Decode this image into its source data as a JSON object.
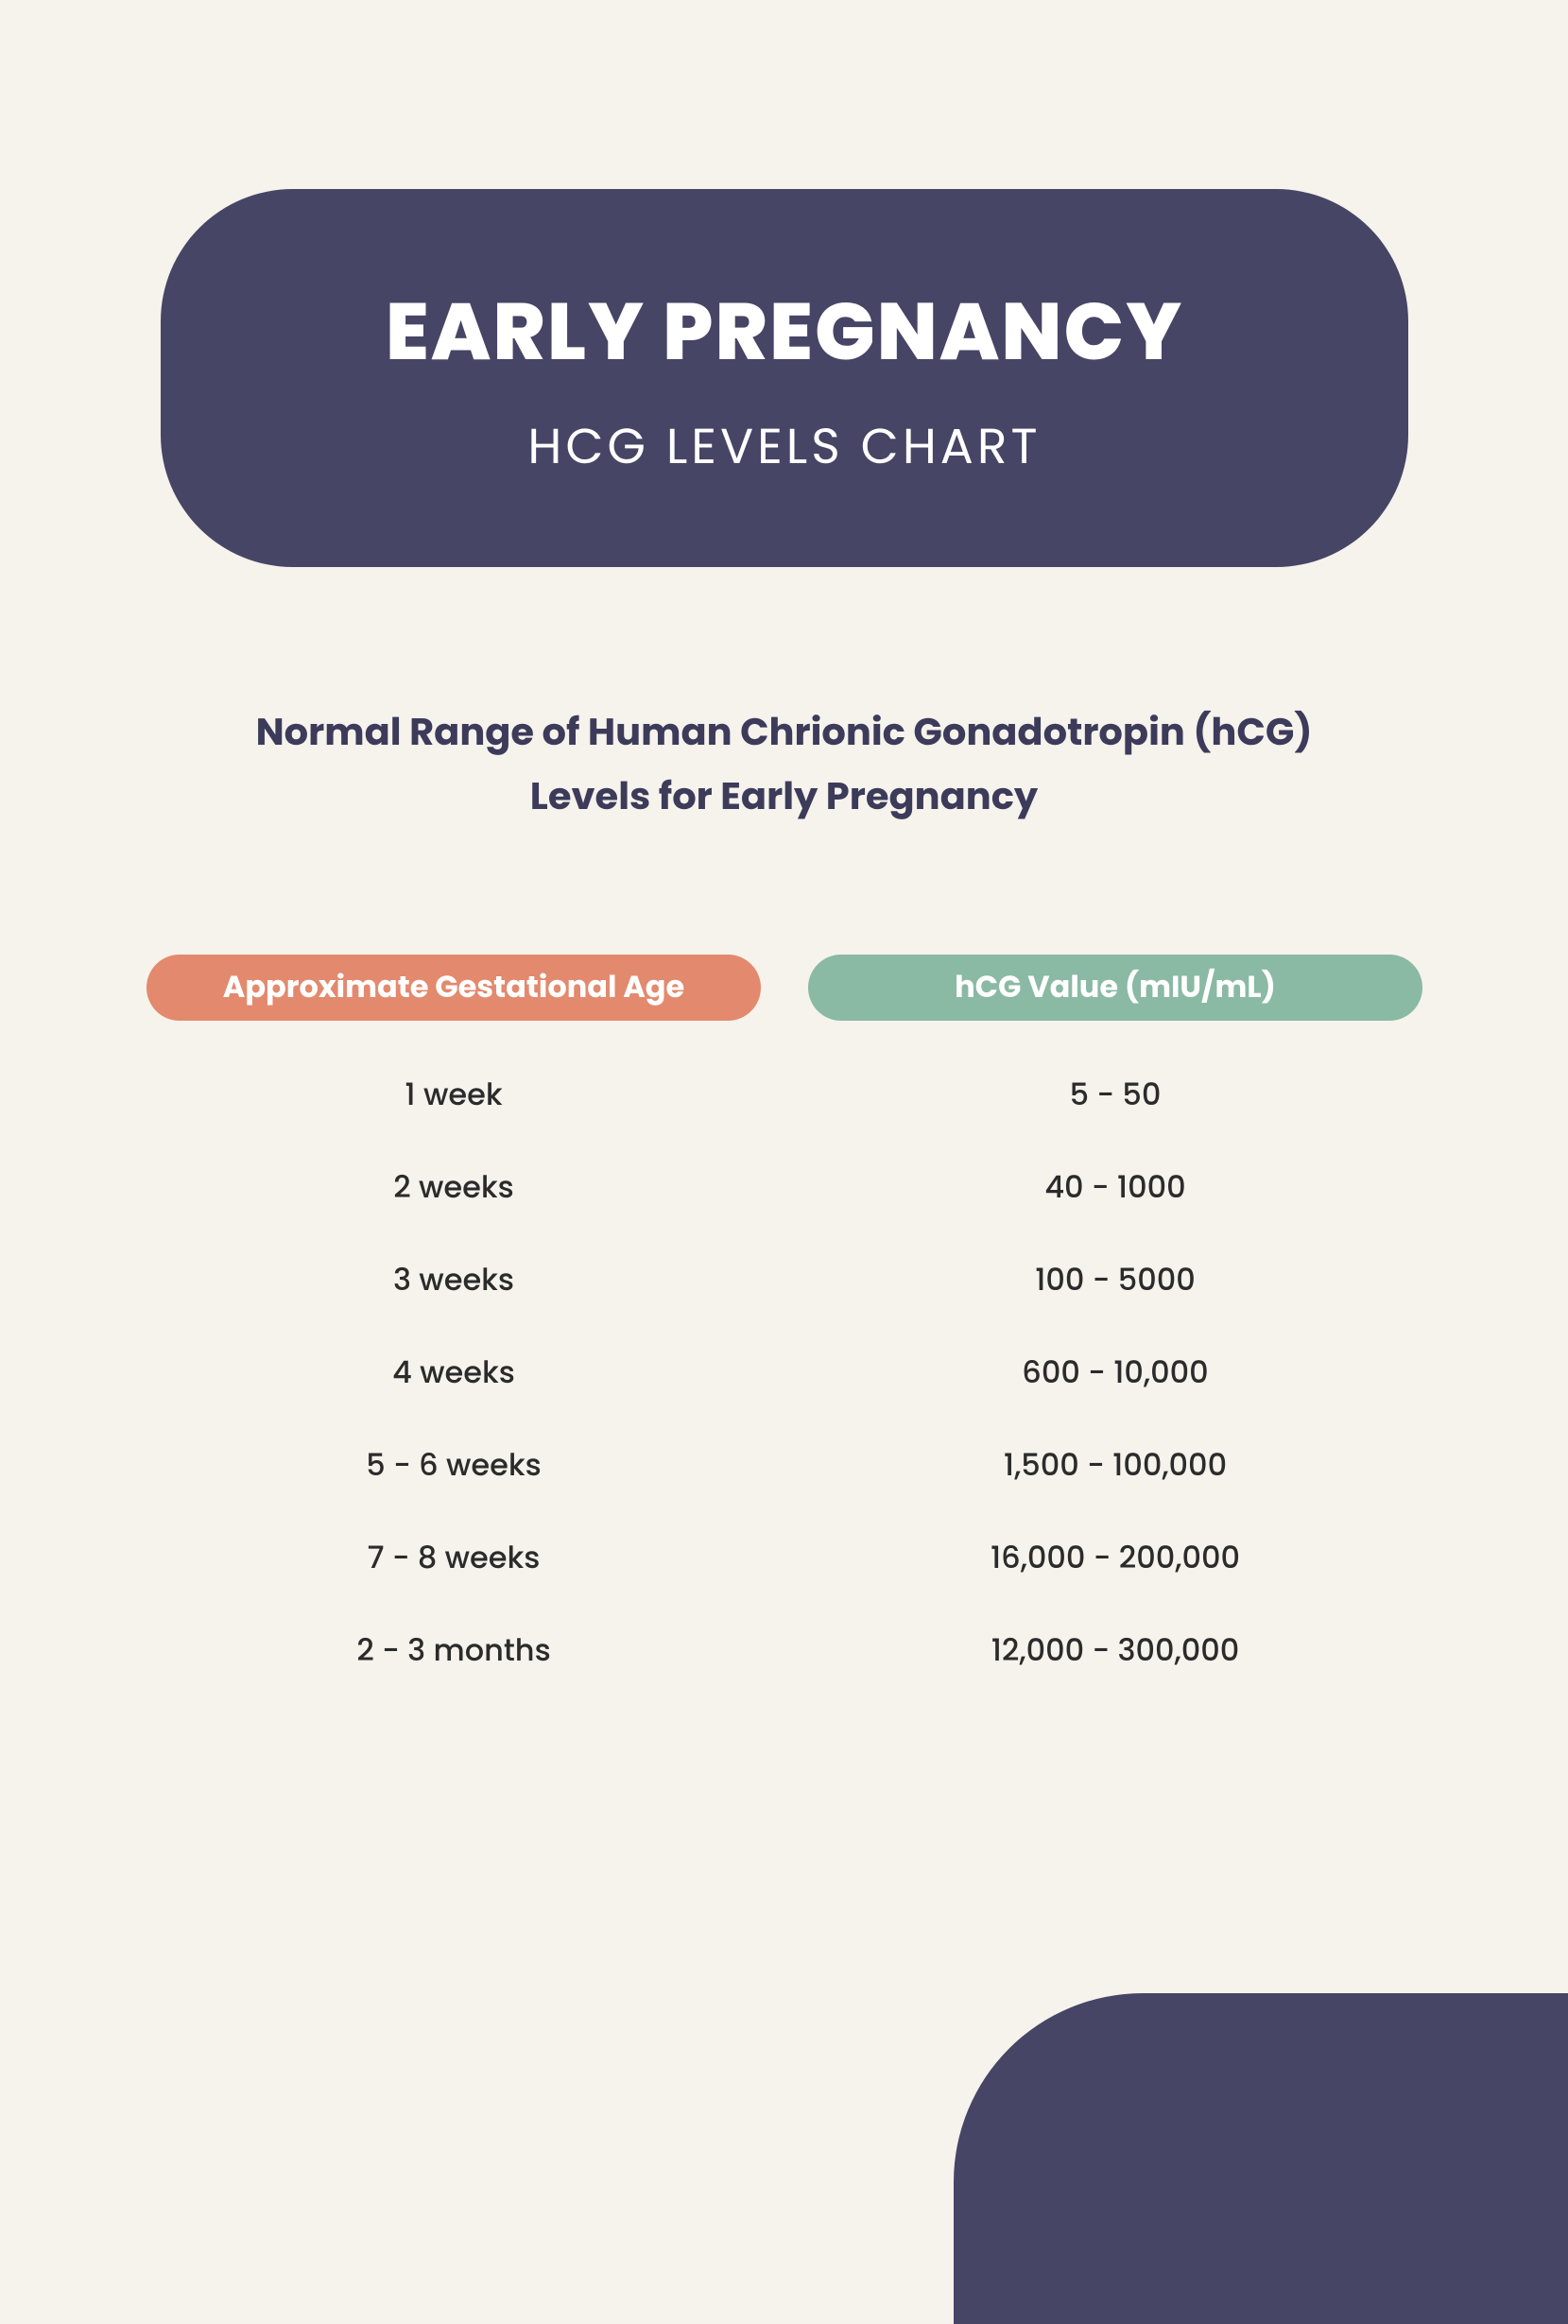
{
  "header": {
    "title": "EARLY PREGNANCY",
    "subtitle": "HCG LEVELS CHART",
    "banner_color": "#464565",
    "banner_border_radius": 140,
    "title_color": "#ffffff",
    "title_fontsize": 84,
    "title_fontweight": 800,
    "subtitle_color": "#ffffff",
    "subtitle_fontsize": 52,
    "subtitle_fontweight": 400
  },
  "description": {
    "line1": "Normal Range of Human Chrionic Gonadotropin (hCG)",
    "line2": "Levels for Early Pregnancy",
    "color": "#3c3b5a",
    "fontsize": 40,
    "fontweight": 700
  },
  "table": {
    "type": "table",
    "columns": [
      {
        "label": "Approximate Gestational Age",
        "pill_color": "#e3896d",
        "text_color": "#ffffff",
        "fontsize": 32,
        "fontweight": 700
      },
      {
        "label": "hCG Value (mIU/mL)",
        "pill_color": "#8ab9a4",
        "text_color": "#ffffff",
        "fontsize": 32,
        "fontweight": 700
      }
    ],
    "rows": [
      [
        "1 week",
        "5 - 50"
      ],
      [
        "2 weeks",
        "40 - 1000"
      ],
      [
        "3 weeks",
        "100 - 5000"
      ],
      [
        "4 weeks",
        "600 - 10,000"
      ],
      [
        "5 - 6 weeks",
        "1,500 - 100,000"
      ],
      [
        "7 - 8 weeks",
        "16,000 - 200,000"
      ],
      [
        "2 - 3 months",
        "12,000 - 300,000"
      ]
    ],
    "cell_color": "#2b2b2b",
    "cell_fontsize": 32,
    "cell_fontweight": 500,
    "row_gap": 50
  },
  "background_color": "#f6f2ec",
  "corner_shape_color": "#464565"
}
